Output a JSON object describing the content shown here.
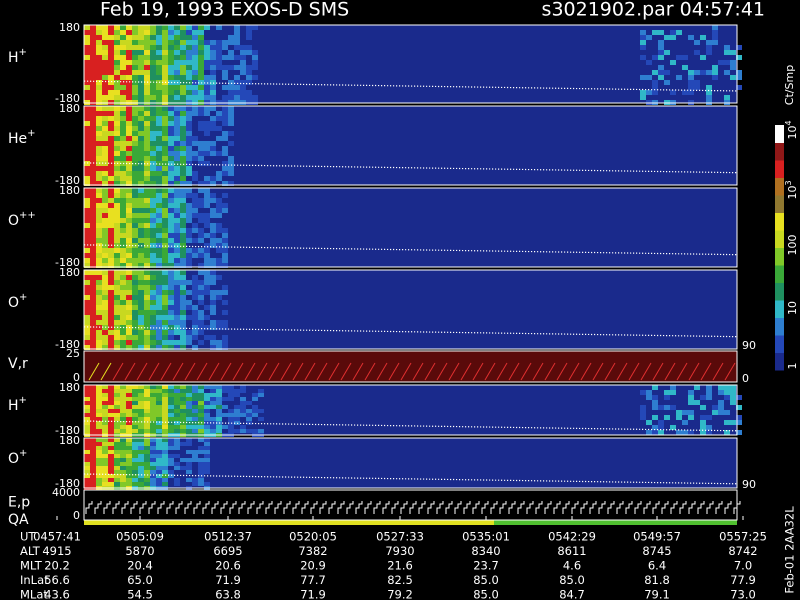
{
  "header": {
    "title": "Feb 19, 1993   EXOS-D SMS",
    "file": "s3021902.par  04:57:41"
  },
  "panels": [
    {
      "label": "H",
      "charge": "+",
      "top": "180",
      "bottom": "-180"
    },
    {
      "label": "He",
      "charge": "+",
      "top": "180",
      "bottom": "-180"
    },
    {
      "label": "O",
      "charge": "++",
      "top": "180",
      "bottom": "-180"
    },
    {
      "label": "O",
      "charge": "+",
      "top": "180",
      "bottom": "-180",
      "right": "90"
    },
    {
      "label": "V,r",
      "top": "25",
      "bottom": "0",
      "right": "0"
    },
    {
      "label": "H",
      "charge": "+",
      "top": "180",
      "bottom": "-180"
    },
    {
      "label": "O",
      "charge": "+",
      "top": "180",
      "bottom": "-180",
      "right": "90"
    },
    {
      "label": "E,p",
      "label2": "QA",
      "top": "4000",
      "bottom": "0"
    }
  ],
  "colorbar": {
    "unit": "Ct/Smp",
    "labels": [
      {
        "base": "10",
        "exp": "4"
      },
      {
        "base": "10",
        "exp": "3"
      },
      {
        "base": "100"
      },
      {
        "base": "10"
      },
      {
        "base": "1"
      }
    ]
  },
  "table": {
    "rows": [
      {
        "name": "UT",
        "cells": [
          "0457:41",
          "0505:09",
          "0512:37",
          "0520:05",
          "0527:33",
          "0535:01",
          "0542:29",
          "0549:57",
          "0557:25"
        ]
      },
      {
        "name": "ALT",
        "cells": [
          "4915",
          "5870",
          "6695",
          "7382",
          "7930",
          "8340",
          "8611",
          "8745",
          "8742"
        ]
      },
      {
        "name": "MLT",
        "cells": [
          "20.2",
          "20.4",
          "20.6",
          "20.9",
          "21.6",
          "23.7",
          "4.6",
          "6.4",
          "7.0"
        ]
      },
      {
        "name": "InLat",
        "cells": [
          "56.6",
          "65.0",
          "71.9",
          "77.7",
          "82.5",
          "85.0",
          "85.0",
          "81.8",
          "77.9"
        ]
      },
      {
        "name": "MLat",
        "cells": [
          "43.6",
          "54.5",
          "63.8",
          "71.9",
          "79.2",
          "85.0",
          "84.7",
          "79.1",
          "73.0"
        ]
      }
    ]
  },
  "footer": {
    "stamp": "Feb-01 2AA32L"
  }
}
